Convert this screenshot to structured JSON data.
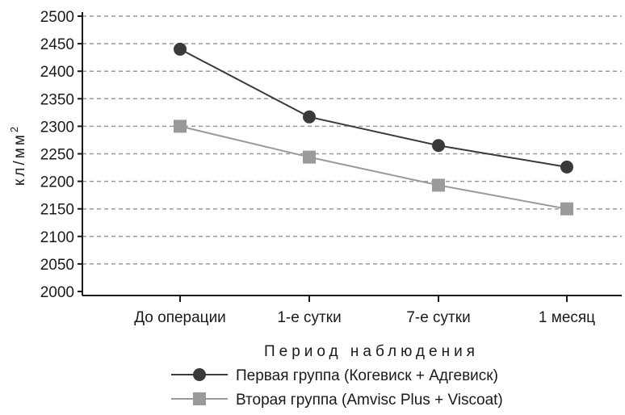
{
  "chart_data": {
    "type": "line",
    "title": "",
    "xlabel": "Период наблюдения",
    "ylabel": "кл/мм",
    "ylabel_superscript": "2",
    "categories": [
      "До операции",
      "1-е сутки",
      "7-е сутки",
      "1 месяц"
    ],
    "ylim": [
      2000,
      2500
    ],
    "yticks": [
      2000,
      2050,
      2100,
      2150,
      2200,
      2250,
      2300,
      2350,
      2400,
      2450,
      2500
    ],
    "grid": "horizontal-dashed",
    "legend_position": "bottom",
    "series": [
      {
        "name": "Первая группа (Когевиск + Адгевиск)",
        "values": [
          2440,
          2317,
          2265,
          2226
        ],
        "marker": "circle",
        "color": "#3a3a3a"
      },
      {
        "name": "Вторая группа (Amvisc Plus + Viscoat)",
        "values": [
          2300,
          2244,
          2193,
          2150
        ],
        "marker": "square",
        "color": "#9a9a9a"
      }
    ]
  }
}
